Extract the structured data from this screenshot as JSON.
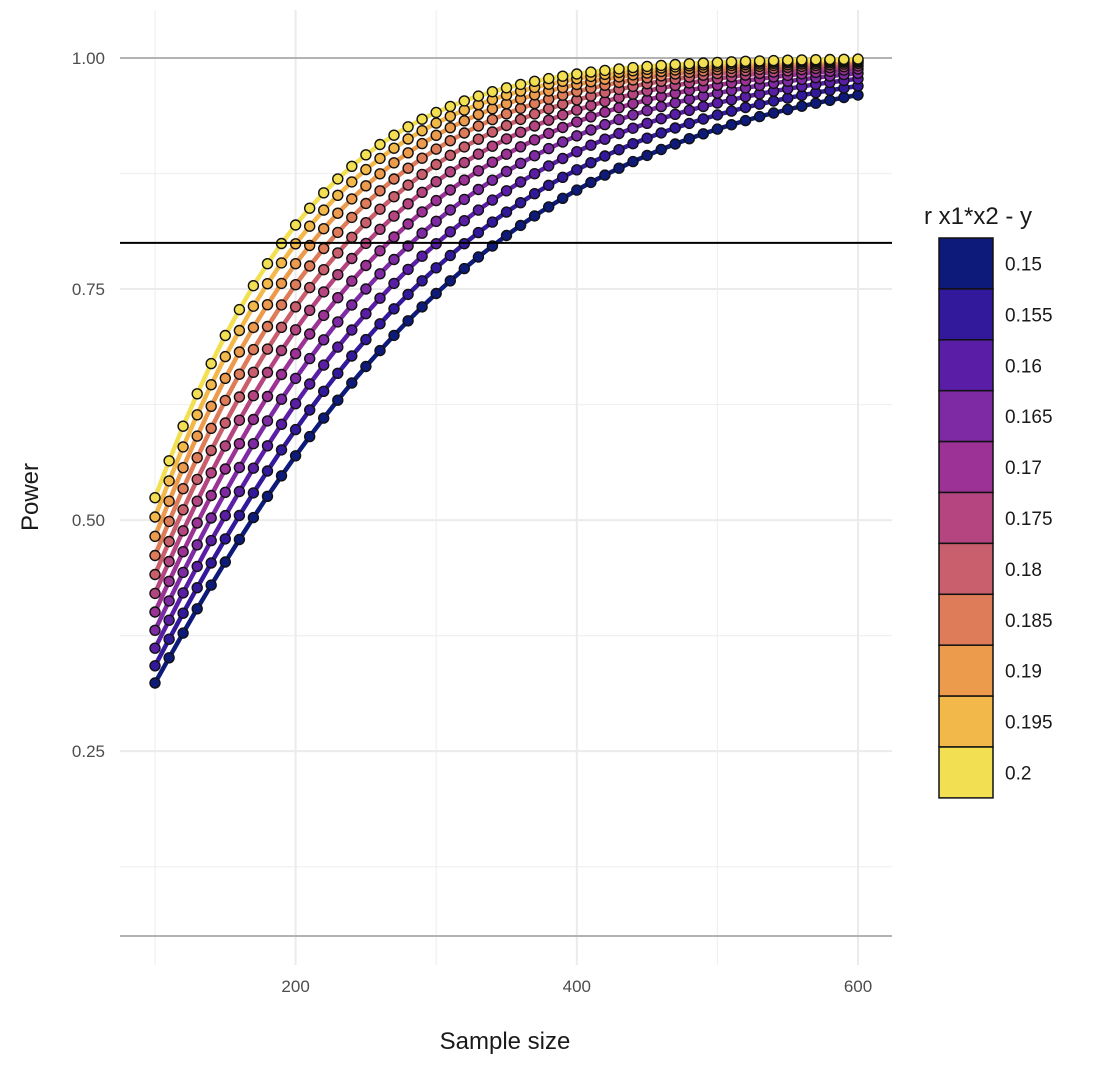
{
  "chart_data": {
    "type": "scatter",
    "title": "",
    "xlabel": "Sample size",
    "ylabel": "Power",
    "xlim": [
      75,
      625
    ],
    "ylim": [
      0.05,
      1.0
    ],
    "x_ticks": [
      200,
      400,
      600
    ],
    "x_tick_labels": [
      "200",
      "400",
      "600"
    ],
    "y_ticks": [
      0.25,
      0.5,
      0.75,
      1.0
    ],
    "y_tick_labels": [
      "0.25",
      "0.50",
      "0.75",
      "1.00"
    ],
    "x_grid_minor": [
      100,
      300,
      500
    ],
    "y_grid_minor": [
      0.125,
      0.375,
      0.625,
      0.875
    ],
    "grid": true,
    "reference_line": {
      "y": 0.8
    },
    "x_start": 100,
    "x_end": 600,
    "x_step": 10,
    "alpha": 0.05,
    "model_predictors": 3,
    "legend": {
      "title": "r x1*x2 - y",
      "position": "right",
      "entries": [
        "0.15",
        "0.155",
        "0.16",
        "0.165",
        "0.17",
        "0.175",
        "0.18",
        "0.185",
        "0.19",
        "0.195",
        "0.2"
      ],
      "colors": [
        "#0d1a7a",
        "#32189a",
        "#5a1ea6",
        "#7e2aa4",
        "#9c3196",
        "#b54581",
        "#c95f6c",
        "#de7b58",
        "#ec9a4c",
        "#f3b84a",
        "#f2e052"
      ]
    },
    "series": [
      {
        "name": "0.15",
        "r": 0.15
      },
      {
        "name": "0.155",
        "r": 0.155
      },
      {
        "name": "0.16",
        "r": 0.16
      },
      {
        "name": "0.165",
        "r": 0.165
      },
      {
        "name": "0.17",
        "r": 0.17
      },
      {
        "name": "0.175",
        "r": 0.175
      },
      {
        "name": "0.18",
        "r": 0.18
      },
      {
        "name": "0.185",
        "r": 0.185
      },
      {
        "name": "0.19",
        "r": 0.19
      },
      {
        "name": "0.195",
        "r": 0.195
      },
      {
        "name": "0.2",
        "r": 0.2
      }
    ]
  }
}
